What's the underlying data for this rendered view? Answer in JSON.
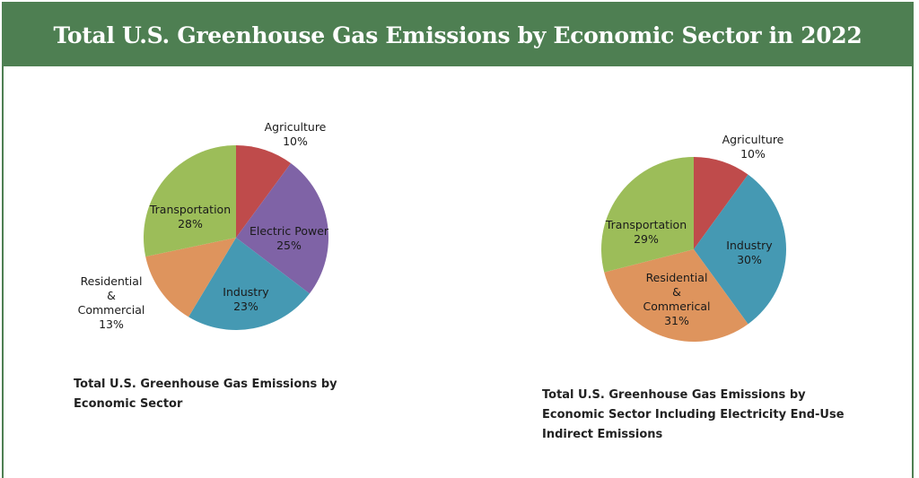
{
  "title": "Total U.S. Greenhouse Gas Emissions by Economic Sector in 2022",
  "colors": {
    "banner": "#4e7f52",
    "agriculture": "#bf4b4b",
    "electric_power": "#7f63a6",
    "industry": "#4599b3",
    "residential_commercial": "#de945d",
    "transportation": "#9cbd59"
  },
  "chart_data": [
    {
      "type": "pie",
      "title": "Total U.S. Greenhouse Gas Emissions by Economic Sector",
      "start": "12 o'clock",
      "direction": "clockwise",
      "slices": [
        {
          "key": "agriculture",
          "label": [
            "Agriculture"
          ],
          "value": 10,
          "display": "10%"
        },
        {
          "key": "electric_power",
          "label": [
            "Electric Power"
          ],
          "value": 25,
          "display": "25%"
        },
        {
          "key": "industry",
          "label": [
            "Industry"
          ],
          "value": 23,
          "display": "23%"
        },
        {
          "key": "residential_commercial",
          "label": [
            "Residential",
            "&",
            "Commercial"
          ],
          "value": 13,
          "display": "13%"
        },
        {
          "key": "transportation",
          "label": [
            "Transportation"
          ],
          "value": 28,
          "display": "28%"
        }
      ]
    },
    {
      "type": "pie",
      "title": "Total U.S. Greenhouse Gas Emissions by Economic Sector Including Electricity End-Use Indirect Emissions",
      "start": "12 o'clock",
      "direction": "clockwise",
      "slices": [
        {
          "key": "agriculture",
          "label": [
            "Agriculture"
          ],
          "value": 10,
          "display": "10%"
        },
        {
          "key": "industry",
          "label": [
            "Industry"
          ],
          "value": 30,
          "display": "30%"
        },
        {
          "key": "residential_commercial",
          "label": [
            "Residential",
            "&",
            "Commerical"
          ],
          "value": 31,
          "display": "31%"
        },
        {
          "key": "transportation",
          "label": [
            "Transportation"
          ],
          "value": 29,
          "display": "29%"
        }
      ]
    }
  ],
  "captions": {
    "left": "Total U.S. Greenhouse Gas Emissions by Economic Sector",
    "right": "Total U.S. Greenhouse Gas Emissions by Economic Sector Including Electricity End-Use Indirect Emissions"
  }
}
